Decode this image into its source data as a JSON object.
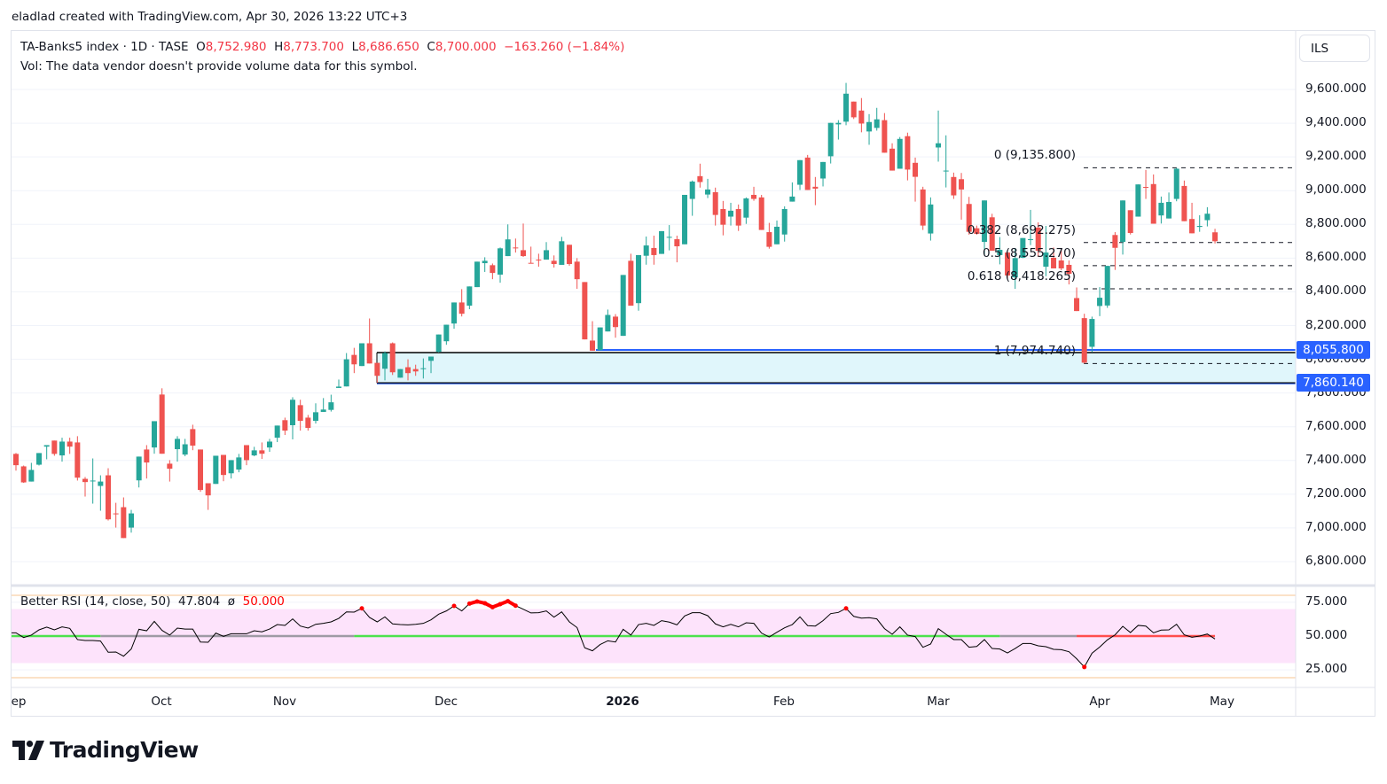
{
  "credit": "eladlad created with TradingView.com, Apr 30, 2026 13:22 UTC+3",
  "legend": {
    "symbol": "TA-Banks5 index · 1D · TASE",
    "open_label": "O",
    "open": "8,752.980",
    "high_label": "H",
    "high": "8,773.700",
    "low_label": "L",
    "low": "8,686.650",
    "close_label": "C",
    "close": "8,700.000",
    "change": "−163.260 (−1.84%)",
    "volume_note": "Vol: The data vendor doesn't provide volume data for this symbol."
  },
  "currency_button": "ILS",
  "colors": {
    "up": "#26a69a",
    "down": "#ef5350",
    "accent": "#2962ff",
    "rsi_band": "#fde3fb",
    "signal_bull": "#4ce24c",
    "signal_neutral": "#9e9aa4",
    "signal_bear": "#ff4d4d",
    "zone_fill": "#e0f6fb"
  },
  "price_axis": {
    "labels": [
      "9,600.000",
      "9,400.000",
      "9,200.000",
      "9,000.000",
      "8,800.000",
      "8,600.000",
      "8,400.000",
      "8,200.000",
      "8,000.000",
      "7,800.000",
      "7,600.000",
      "7,400.000",
      "7,200.000",
      "7,000.000",
      "6,800.000"
    ],
    "badges": [
      "8,055.800",
      "7,860.140"
    ]
  },
  "time_axis": {
    "labels": [
      "ep",
      "Oct",
      "Nov",
      "Dec",
      "2026",
      "Feb",
      "Mar",
      "Apr",
      "May"
    ]
  },
  "fib": {
    "levels": [
      {
        "label": "0 (9,135.800)",
        "price": 9135.8
      },
      {
        "label": "0.382 (8,692.275)",
        "price": 8692.275
      },
      {
        "label": "0.5 (8,555.270)",
        "price": 8555.27
      },
      {
        "label": "0.618 (8,418.265)",
        "price": 8418.265
      },
      {
        "label": "1 (7,974.740)",
        "price": 7974.74
      }
    ]
  },
  "zone": {
    "top": 8040,
    "bottom": 7860.14,
    "line_upper": 8055.8,
    "line_lower": 7860.14
  },
  "rsi": {
    "legend": "Better RSI (14, close, 50)",
    "value": "47.804",
    "symbol": "ø",
    "signal": "50.000",
    "axis_labels": [
      "75.000",
      "50.000",
      "25.000"
    ],
    "upper_band": 70,
    "lower_band": 30,
    "signal_segments": [
      {
        "from": 1,
        "to": 12,
        "state": "bull"
      },
      {
        "from": 12,
        "to": 45,
        "state": "neutral"
      },
      {
        "from": 45,
        "to": 129,
        "state": "bull"
      },
      {
        "from": 129,
        "to": 139,
        "state": "neutral"
      },
      {
        "from": 139,
        "to": 157,
        "state": "bear"
      }
    ]
  },
  "chart_data": {
    "type": "candlestick",
    "title": "TA-Banks5 index · 1D · TASE",
    "ylim": [
      6700,
      9700
    ],
    "y_ticks": [
      9600,
      9400,
      9200,
      9000,
      8800,
      8600,
      8400,
      8200,
      8000,
      7800,
      7600,
      7400,
      7200,
      7000,
      6800
    ],
    "grid": true,
    "ohlc": [
      [
        7439,
        7444,
        7340,
        7372
      ],
      [
        7365,
        7370,
        7267,
        7270
      ],
      [
        7275,
        7386,
        7275,
        7344
      ],
      [
        7375,
        7444,
        7370,
        7444
      ],
      [
        7482,
        7491,
        7407,
        7491
      ],
      [
        7518,
        7518,
        7428,
        7439
      ],
      [
        7430,
        7535,
        7393,
        7512
      ],
      [
        7512,
        7535,
        7439,
        7482
      ],
      [
        7507,
        7544,
        7281,
        7298
      ],
      [
        7291,
        7302,
        7186,
        7272
      ],
      [
        7279,
        7412,
        7144,
        7281
      ],
      [
        7249,
        7312,
        7102,
        7275
      ],
      [
        7312,
        7354,
        7044,
        7051
      ],
      [
        7086,
        7149,
        7002,
        7084
      ],
      [
        7123,
        7181,
        6940,
        6940
      ],
      [
        7002,
        7107,
        6972,
        7086
      ],
      [
        7282,
        7423,
        7240,
        7423
      ],
      [
        7465,
        7491,
        7293,
        7388
      ],
      [
        7477,
        7633,
        7440,
        7633
      ],
      [
        7791,
        7828,
        7440,
        7440
      ],
      [
        7381,
        7402,
        7275,
        7351
      ],
      [
        7467,
        7544,
        7393,
        7528
      ],
      [
        7435,
        7528,
        7425,
        7496
      ],
      [
        7586,
        7612,
        7461,
        7488
      ],
      [
        7465,
        7465,
        7214,
        7225
      ],
      [
        7265,
        7265,
        7107,
        7193
      ],
      [
        7261,
        7428,
        7261,
        7428
      ],
      [
        7433,
        7433,
        7277,
        7314
      ],
      [
        7324,
        7402,
        7293,
        7402
      ],
      [
        7346,
        7439,
        7330,
        7418
      ],
      [
        7491,
        7491,
        7372,
        7402
      ],
      [
        7430,
        7481,
        7425,
        7460
      ],
      [
        7460,
        7507,
        7409,
        7440
      ],
      [
        7477,
        7528,
        7451,
        7512
      ],
      [
        7535,
        7607,
        7509,
        7607
      ],
      [
        7639,
        7654,
        7551,
        7577
      ],
      [
        7609,
        7775,
        7525,
        7760
      ],
      [
        7728,
        7760,
        7577,
        7635
      ],
      [
        7654,
        7670,
        7577,
        7593
      ],
      [
        7635,
        7739,
        7619,
        7686
      ],
      [
        7688,
        7770,
        7688,
        7702
      ],
      [
        7700,
        7790,
        7690,
        7745
      ],
      [
        7830,
        7880,
        7830,
        7838
      ],
      [
        7839,
        8037,
        7839,
        8000
      ],
      [
        8026,
        8068,
        7918,
        7970
      ],
      [
        7960,
        8095,
        7960,
        8095
      ],
      [
        8095,
        8242,
        7975,
        7975
      ],
      [
        7979,
        7979,
        7861,
        7902
      ],
      [
        7944,
        8047,
        7875,
        8037
      ],
      [
        8095,
        8100,
        7907,
        7923
      ],
      [
        7891,
        7942,
        7891,
        7942
      ],
      [
        7953,
        8000,
        7875,
        7918
      ],
      [
        7942,
        7968,
        7902,
        7928
      ],
      [
        7945,
        8005,
        7886,
        7947
      ],
      [
        7991,
        8016,
        7918,
        8016
      ],
      [
        8044,
        8147,
        8040,
        8147
      ],
      [
        8107,
        8205,
        8086,
        8205
      ],
      [
        8212,
        8337,
        8181,
        8337
      ],
      [
        8337,
        8416,
        8254,
        8270
      ],
      [
        8318,
        8432,
        8297,
        8432
      ],
      [
        8428,
        8579,
        8428,
        8579
      ],
      [
        8570,
        8605,
        8518,
        8584
      ],
      [
        8558,
        8568,
        8475,
        8512
      ],
      [
        8502,
        8663,
        8454,
        8658
      ],
      [
        8612,
        8800,
        8612,
        8711
      ],
      [
        8663,
        8716,
        8633,
        8660
      ],
      [
        8647,
        8805,
        8607,
        8612
      ],
      [
        8572,
        8668,
        8570,
        8570
      ],
      [
        8591,
        8626,
        8549,
        8588
      ],
      [
        8591,
        8695,
        8591,
        8647
      ],
      [
        8584,
        8616,
        8544,
        8565
      ],
      [
        8560,
        8726,
        8560,
        8700
      ],
      [
        8679,
        8679,
        8555,
        8565
      ],
      [
        8579,
        8600,
        8418,
        8475
      ],
      [
        8458,
        8458,
        8118,
        8118
      ],
      [
        8111,
        8226,
        8051,
        8051
      ],
      [
        8054,
        8189,
        8054,
        8189
      ],
      [
        8165,
        8295,
        8165,
        8263
      ],
      [
        8253,
        8268,
        8128,
        8191
      ],
      [
        8139,
        8500,
        8139,
        8500
      ],
      [
        8584,
        8626,
        8318,
        8318
      ],
      [
        8333,
        8618,
        8288,
        8618
      ],
      [
        8614,
        8728,
        8561,
        8675
      ],
      [
        8660,
        8733,
        8561,
        8618
      ],
      [
        8625,
        8760,
        8625,
        8760
      ],
      [
        8724,
        8796,
        8646,
        8726
      ],
      [
        8712,
        8733,
        8575,
        8670
      ],
      [
        8682,
        8975,
        8682,
        8975
      ],
      [
        8951,
        9060,
        8851,
        9054
      ],
      [
        9086,
        9160,
        9018,
        9051
      ],
      [
        8977,
        9070,
        8956,
        9007
      ],
      [
        8991,
        9018,
        8793,
        8856
      ],
      [
        8891,
        8939,
        8735,
        8798
      ],
      [
        8846,
        8928,
        8793,
        8881
      ],
      [
        8891,
        8918,
        8761,
        8793
      ],
      [
        8840,
        8960,
        8803,
        8954
      ],
      [
        8975,
        9023,
        8940,
        8951
      ],
      [
        8960,
        8975,
        8767,
        8767
      ],
      [
        8754,
        8809,
        8656,
        8667
      ],
      [
        8682,
        8823,
        8682,
        8786
      ],
      [
        8740,
        8907,
        8698,
        8891
      ],
      [
        8935,
        9049,
        8935,
        8965
      ],
      [
        9035,
        9181,
        9004,
        9181
      ],
      [
        9196,
        9212,
        9004,
        9004
      ],
      [
        9023,
        9081,
        8914,
        9012
      ],
      [
        9072,
        9170,
        9025,
        9170
      ],
      [
        9204,
        9402,
        9161,
        9402
      ],
      [
        9393,
        9418,
        9303,
        9402
      ],
      [
        9409,
        9639,
        9388,
        9575
      ],
      [
        9528,
        9528,
        9425,
        9435
      ],
      [
        9475,
        9549,
        9346,
        9398
      ],
      [
        9351,
        9454,
        9272,
        9407
      ],
      [
        9372,
        9491,
        9356,
        9423
      ],
      [
        9418,
        9460,
        9225,
        9225
      ],
      [
        9249,
        9281,
        9119,
        9119
      ],
      [
        9130,
        9318,
        9130,
        9307
      ],
      [
        9323,
        9344,
        9061,
        9125
      ],
      [
        9165,
        9196,
        8935,
        9082
      ],
      [
        9007,
        9023,
        8767,
        8793
      ],
      [
        8746,
        8960,
        8704,
        8918
      ],
      [
        9256,
        9475,
        9172,
        9281
      ],
      [
        9117,
        9328,
        9019,
        9119
      ],
      [
        9081,
        9107,
        8951,
        8972
      ],
      [
        9068,
        9105,
        8828,
        9007
      ],
      [
        8921,
        8963,
        8739,
        8756
      ],
      [
        8777,
        8793,
        8739,
        8744
      ],
      [
        8696,
        8942,
        8618,
        8942
      ],
      [
        8842,
        8863,
        8644,
        8644
      ],
      [
        8618,
        8725,
        8563,
        8649
      ],
      [
        8633,
        8639,
        8475,
        8497
      ],
      [
        8486,
        8660,
        8418,
        8600
      ],
      [
        8602,
        8719,
        8600,
        8719
      ],
      [
        8710,
        8886,
        8677,
        8712
      ],
      [
        8781,
        8812,
        8607,
        8644
      ],
      [
        8549,
        8791,
        8493,
        8633
      ],
      [
        8602,
        8663,
        8539,
        8539
      ],
      [
        8586,
        8660,
        8528,
        8539
      ],
      [
        8560,
        8586,
        8444,
        8507
      ],
      [
        8363,
        8426,
        8286,
        8286
      ],
      [
        8244,
        8270,
        7974.74,
        7980
      ],
      [
        8074,
        8253,
        8042,
        8239
      ],
      [
        8316,
        8428,
        8256,
        8365
      ],
      [
        8319,
        8554,
        8305,
        8554
      ],
      [
        8737,
        8754,
        8530,
        8661
      ],
      [
        8696,
        8942,
        8621,
        8942
      ],
      [
        8884,
        8884,
        8740,
        8749
      ],
      [
        8846,
        9037,
        8846,
        9037
      ],
      [
        9022,
        9123,
        8951,
        9021
      ],
      [
        9039,
        9096,
        8804,
        8804
      ],
      [
        8853,
        8965,
        8805,
        8928
      ],
      [
        8835,
        8989,
        8835,
        8933
      ],
      [
        8951,
        9135.8,
        8937,
        9130
      ],
      [
        9028,
        9060,
        8819,
        8819
      ],
      [
        8832,
        8928,
        8747,
        8747
      ],
      [
        8785,
        8854,
        8756,
        8791
      ],
      [
        8825,
        8902,
        8788,
        8863.26
      ],
      [
        8752.98,
        8773.7,
        8686.65,
        8700
      ]
    ],
    "rsi": [
      52.4,
      48.9,
      50.7,
      54.6,
      56.6,
      54.6,
      56.8,
      55.7,
      47.4,
      46.7,
      46.7,
      46.3,
      38.0,
      38.2,
      35.1,
      40.4,
      55.0,
      53.9,
      60.9,
      54.2,
      50.7,
      55.9,
      55.2,
      55.2,
      45.6,
      45.4,
      52.2,
      49.8,
      51.7,
      51.7,
      51.7,
      53.9,
      53.1,
      55.2,
      58.5,
      57.9,
      62.7,
      57.4,
      55.9,
      58.7,
      59.4,
      60.5,
      63.1,
      67.9,
      67.7,
      70.5,
      63.8,
      60.5,
      64.2,
      59.0,
      58.5,
      58.3,
      58.7,
      59.4,
      62.0,
      66.2,
      68.6,
      72.3,
      68.6,
      74.0,
      75.6,
      74.3,
      71.4,
      73.6,
      75.8,
      72.5,
      69.9,
      67.1,
      67.3,
      68.6,
      64.0,
      67.9,
      60.5,
      56.3,
      41.3,
      39.1,
      43.7,
      46.5,
      45.6,
      55.0,
      50.7,
      58.5,
      59.4,
      57.9,
      61.4,
      60.3,
      58.3,
      64.9,
      67.3,
      67.3,
      65.1,
      59.0,
      56.8,
      58.7,
      56.8,
      59.8,
      59.4,
      52.2,
      49.3,
      52.8,
      56.1,
      58.5,
      64.2,
      57.7,
      57.4,
      61.4,
      66.6,
      67.5,
      70.5,
      64.6,
      63.3,
      63.6,
      62.7,
      55.5,
      51.3,
      56.8,
      50.7,
      49.6,
      41.7,
      44.1,
      55.5,
      51.3,
      47.4,
      47.4,
      41.7,
      42.3,
      47.4,
      40.8,
      40.4,
      37.5,
      40.8,
      44.5,
      44.5,
      42.8,
      42.1,
      40.2,
      39.9,
      38.4,
      33.2,
      27.1,
      37.3,
      41.9,
      47.2,
      50.9,
      57.2,
      52.6,
      57.9,
      57.4,
      52.4,
      54.4,
      54.6,
      58.7,
      50.9,
      49.1,
      50.0,
      51.5,
      47.804
    ]
  }
}
